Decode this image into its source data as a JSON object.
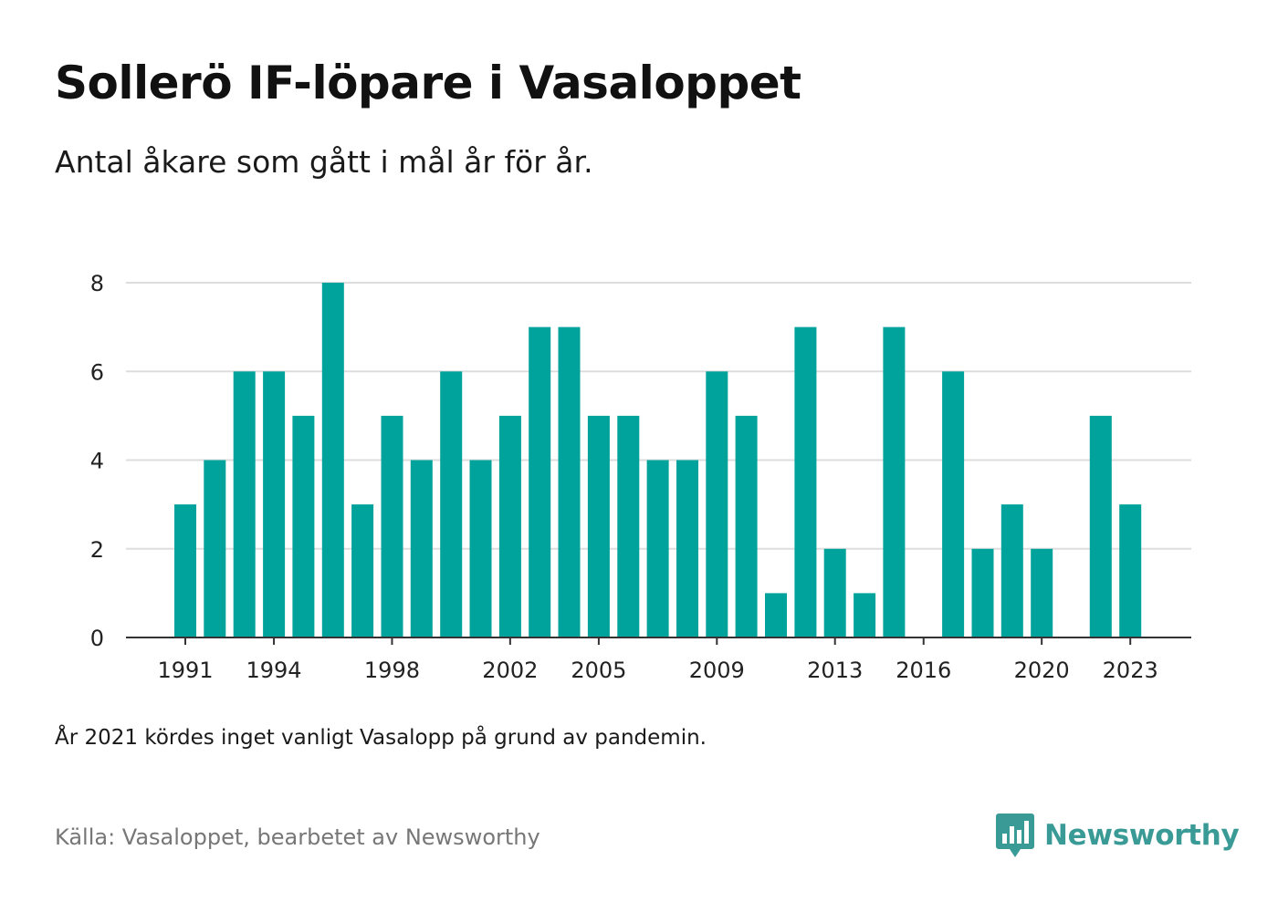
{
  "header": {
    "title": "Sollerö IF-löpare i Vasaloppet",
    "subtitle": "Antal åkare som gått i mål år för år."
  },
  "footer": {
    "note": "År 2021 kördes inget vanligt Vasalopp på grund av pandemin.",
    "source": "Källa: Vasaloppet, bearbetet av Newsworthy",
    "brand": "Newsworthy"
  },
  "colors": {
    "bar": "#00a39b",
    "grid": "#dddddd",
    "axis": "#333333",
    "brand": "#3a9a95"
  },
  "icons": {
    "brand_logo": "newsworthy-chart-bubble-icon"
  },
  "chart_data": {
    "type": "bar",
    "title": "Sollerö IF-löpare i Vasaloppet",
    "subtitle": "Antal åkare som gått i mål år för år.",
    "categories": [
      1991,
      1992,
      1993,
      1994,
      1995,
      1996,
      1997,
      1998,
      1999,
      2000,
      2001,
      2002,
      2003,
      2004,
      2005,
      2006,
      2007,
      2008,
      2009,
      2010,
      2011,
      2012,
      2013,
      2014,
      2015,
      2016,
      2017,
      2018,
      2019,
      2020,
      2021,
      2022,
      2023
    ],
    "values": [
      3,
      4,
      6,
      6,
      5,
      8,
      3,
      5,
      4,
      6,
      4,
      5,
      7,
      7,
      5,
      5,
      4,
      4,
      6,
      5,
      1,
      7,
      2,
      1,
      7,
      0,
      6,
      2,
      3,
      2,
      null,
      5,
      3
    ],
    "xticks": [
      "1991",
      "1994",
      "1998",
      "2002",
      "2005",
      "2009",
      "2013",
      "2016",
      "2020",
      "2023"
    ],
    "yticks": [
      0,
      2,
      4,
      6,
      8
    ],
    "ylim": [
      0,
      8
    ],
    "grid": true,
    "legend": "none"
  }
}
